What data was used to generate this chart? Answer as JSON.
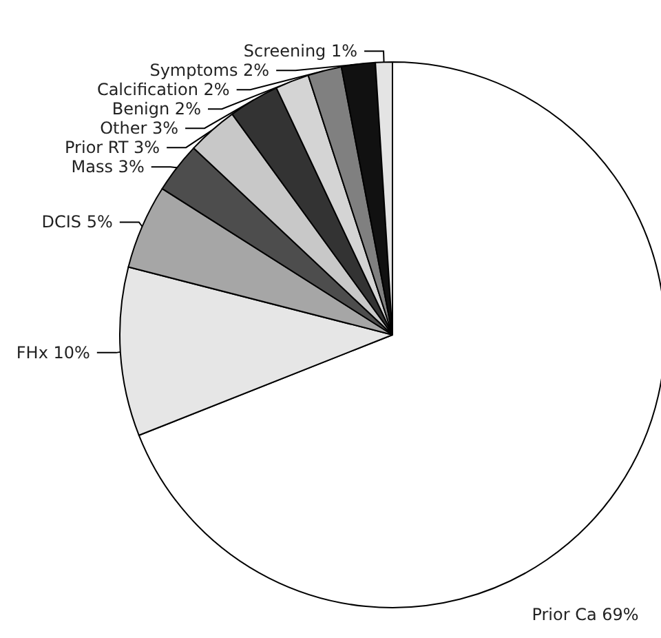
{
  "chart_data": {
    "type": "pie",
    "categories": [
      "Prior Ca",
      "FHx",
      "DCIS",
      "Mass",
      "Prior RT",
      "Other",
      "Benign",
      "Calcification",
      "Symptoms",
      "Screening"
    ],
    "values": [
      69,
      10,
      5,
      3,
      3,
      3,
      2,
      2,
      2,
      1
    ],
    "value_labels": [
      "69%",
      "10%",
      "5%",
      "3%",
      "3%",
      "3%",
      "2%",
      "2%",
      "2%",
      "1%"
    ],
    "colors": [
      "#ffffff",
      "#e6e6e6",
      "#a6a6a6",
      "#4d4d4d",
      "#c8c8c8",
      "#333333",
      "#d4d4d4",
      "#808080",
      "#111111",
      "#e4e4e4"
    ],
    "legend": false
  }
}
